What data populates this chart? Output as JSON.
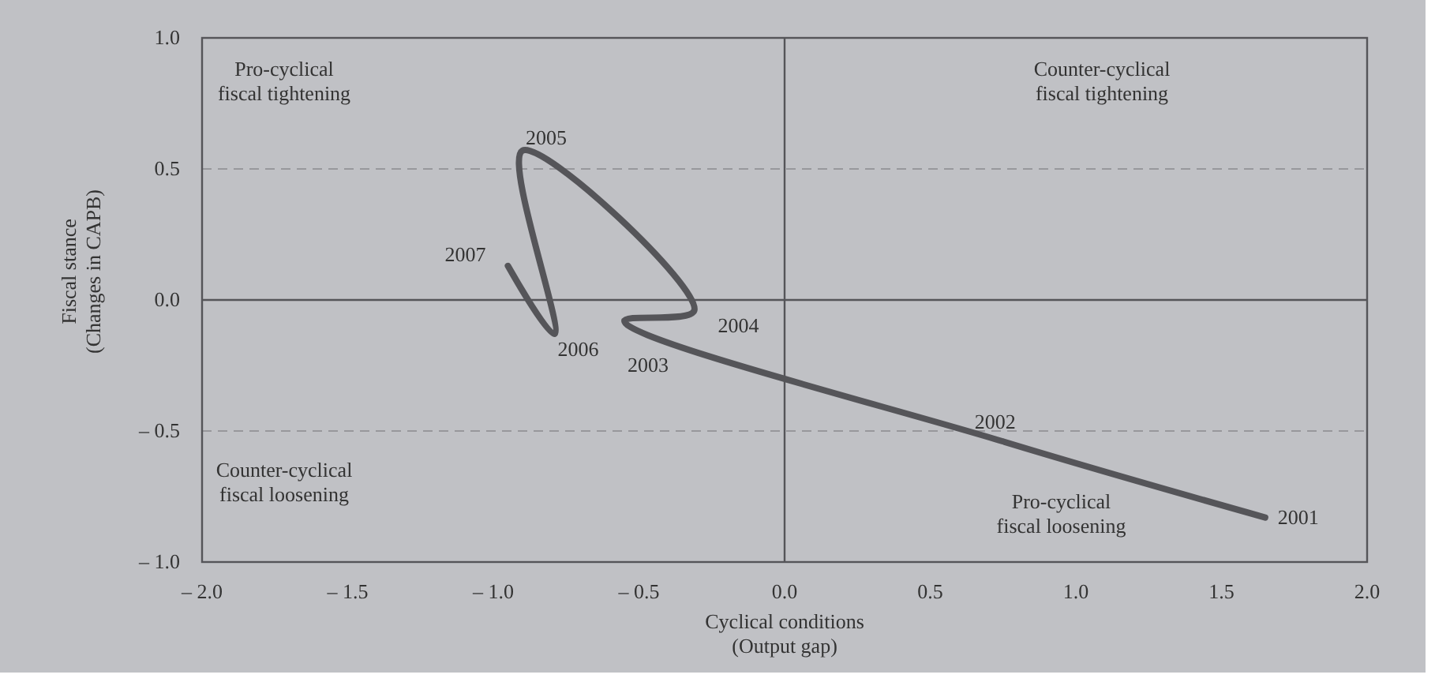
{
  "chart_data": {
    "type": "line",
    "xlabel": "Cyclical conditions\n(Output gap)",
    "ylabel": "Fiscal stance\n(Changes in CAPB)",
    "x": [
      1.65,
      0.75,
      -0.55,
      -0.31,
      -0.9,
      -0.79,
      -0.95
    ],
    "series": [
      {
        "color": "#555559",
        "values": [
          -0.83,
          -0.54,
          -0.08,
          -0.04,
          0.57,
          -0.13,
          0.13
        ]
      }
    ],
    "xlim": [
      -2,
      2
    ],
    "ylim": [
      -1,
      1
    ],
    "xticks": [
      {
        "value": -2,
        "label": "– 2.0"
      },
      {
        "value": -1.5,
        "label": "– 1.5"
      },
      {
        "value": -1,
        "label": "– 1.0"
      },
      {
        "value": -0.5,
        "label": "– 0.5"
      },
      {
        "value": 0,
        "label": "0.0"
      },
      {
        "value": 0.5,
        "label": "0.5"
      },
      {
        "value": 1,
        "label": "1.0"
      },
      {
        "value": 1.5,
        "label": "1.5"
      },
      {
        "value": 2,
        "label": "2.0"
      }
    ],
    "yticks": [
      {
        "value": -1,
        "label": "– 1.0"
      },
      {
        "value": -0.5,
        "label": "– 0.5"
      },
      {
        "value": 0,
        "label": "0.0"
      },
      {
        "value": 0.5,
        "label": "0.5"
      },
      {
        "value": 1,
        "label": "1.0"
      }
    ],
    "ref_lines": [
      {
        "axis": "y",
        "value": 0.5,
        "line_style": "dashed",
        "color": "#8a8a8e"
      },
      {
        "axis": "y",
        "value": -0.5,
        "line_style": "dashed",
        "color": "#8a8a8e"
      },
      {
        "axis": "y",
        "value": 0,
        "line_style": "solid",
        "color": "#555559"
      },
      {
        "axis": "x",
        "value": 0,
        "line_style": "solid",
        "color": "#555559"
      }
    ],
    "annotations": [
      {
        "text": "2001",
        "x": 1.65,
        "y": -0.83
      },
      {
        "text": "2002",
        "x": 0.75,
        "y": -0.54
      },
      {
        "text": "2003",
        "x": -0.55,
        "y": -0.08
      },
      {
        "text": "2004",
        "x": -0.31,
        "y": -0.04
      },
      {
        "text": "2005",
        "x": -0.9,
        "y": 0.57
      },
      {
        "text": "2006",
        "x": -0.79,
        "y": -0.13
      },
      {
        "text": "2007",
        "x": -0.95,
        "y": 0.13
      },
      "Pro-cyclical\nfiscal tightening",
      "Counter-cyclical\nfiscal tightening",
      "Counter-cyclical\nfiscal loosening",
      "Pro-cyclical\nfiscal loosening"
    ],
    "line_style": "solid",
    "marker": "none",
    "grid": false
  }
}
